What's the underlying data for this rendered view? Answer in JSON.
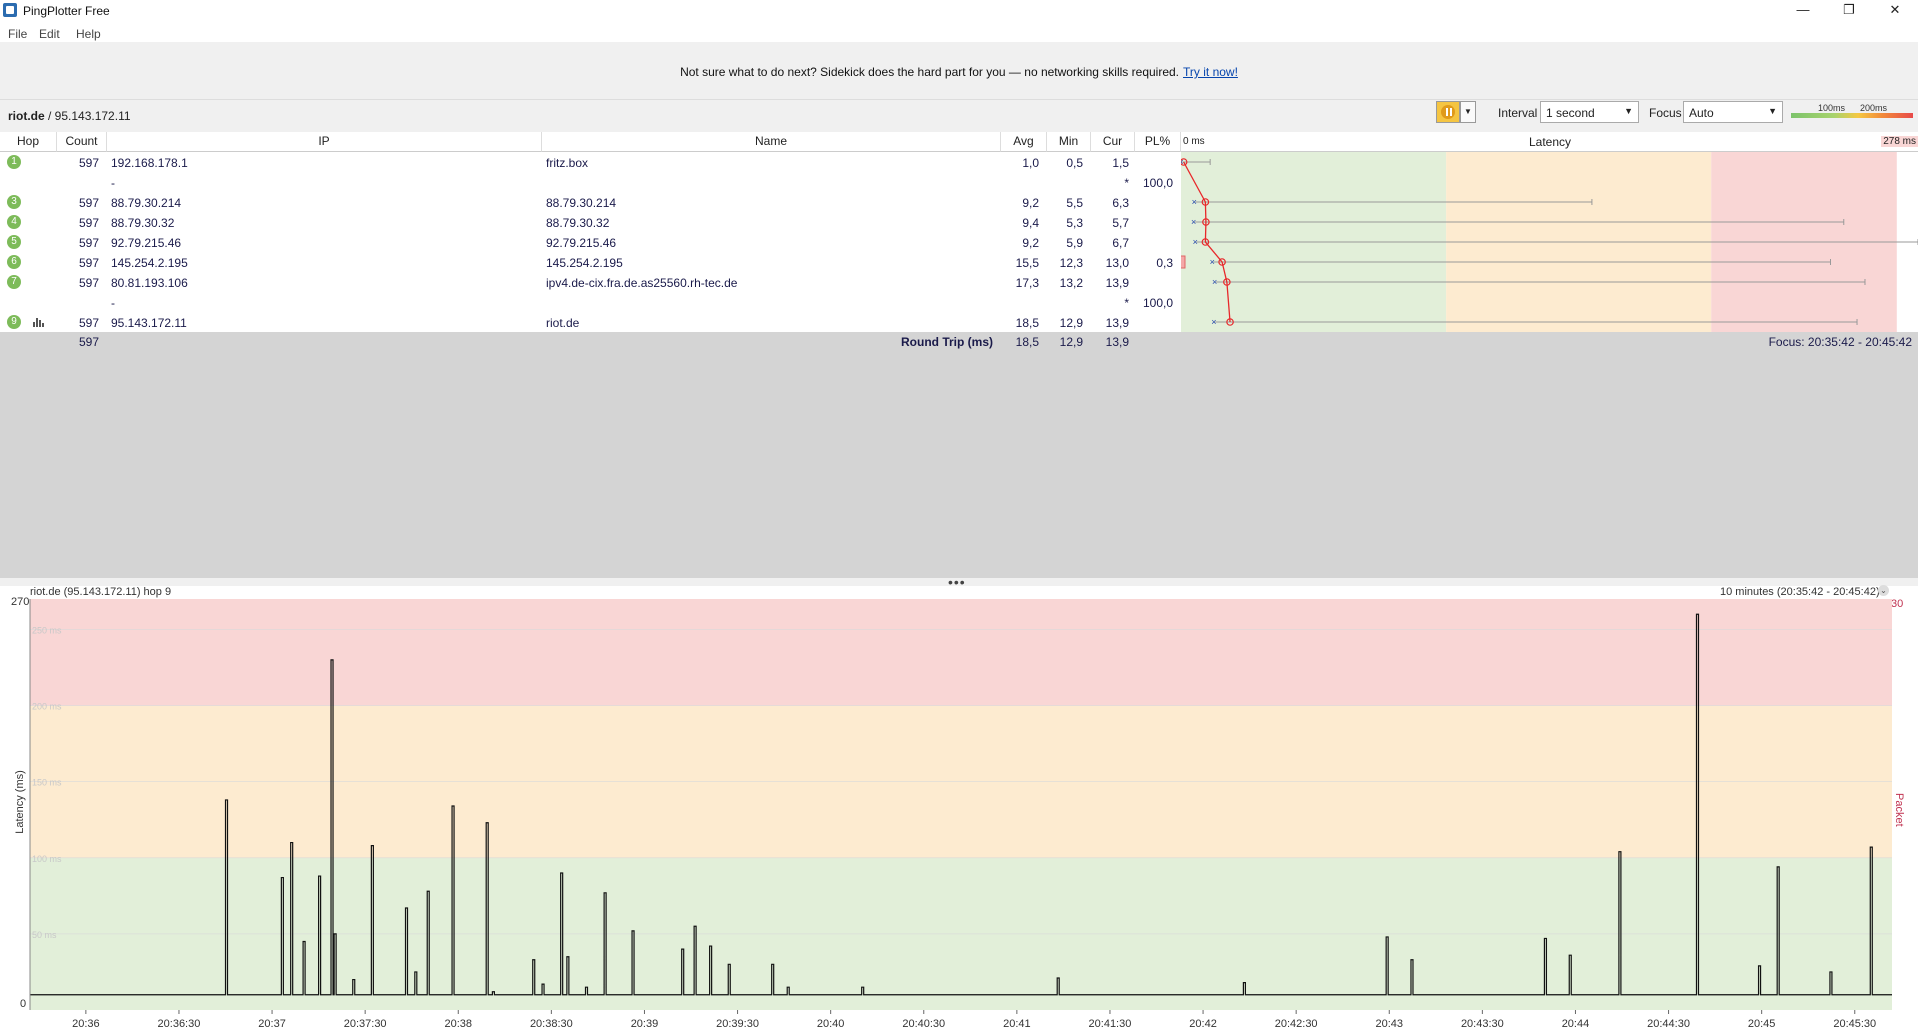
{
  "window": {
    "title": "PingPlotter Free",
    "minimize": "—",
    "restore": "❐",
    "close": "✕"
  },
  "menu": [
    "File",
    "Edit",
    "Help"
  ],
  "banner": {
    "text": "Not sure what to do next? Sidekick does the hard part for you — no networking skills required.",
    "link": "Try it now!"
  },
  "target": {
    "host": "riot.de",
    "ip": " / 95.143.172.11"
  },
  "controls": {
    "interval_label": "Interval",
    "interval_value": "1 second",
    "focus_label": "Focus",
    "focus_value": "Auto",
    "scale_100": "100ms",
    "scale_200": "200ms"
  },
  "table": {
    "headers": {
      "hop": "Hop",
      "count": "Count",
      "ip": "IP",
      "name": "Name",
      "avg": "Avg",
      "min": "Min",
      "cur": "Cur",
      "pl": "PL%",
      "latency": "Latency",
      "lat_min": "0 ms",
      "lat_max": "278 ms"
    },
    "rows": [
      {
        "hop": "1",
        "count": "597",
        "ip": "192.168.178.1",
        "name": "fritz.box",
        "avg": "1,0",
        "min": "0,5",
        "cur": "1,5",
        "pl": "",
        "lat": 1.0,
        "lat_min": 0.5,
        "lat_max": 11
      },
      {
        "hop": "",
        "count": "",
        "ip": "-",
        "name": "",
        "avg": "",
        "min": "",
        "cur": "*",
        "pl": "100,0",
        "lat": null
      },
      {
        "hop": "3",
        "count": "597",
        "ip": "88.79.30.214",
        "name": "88.79.30.214",
        "avg": "9,2",
        "min": "5,5",
        "cur": "6,3",
        "pl": "",
        "lat": 9.2,
        "lat_min": 5.5,
        "lat_max": 155
      },
      {
        "hop": "4",
        "count": "597",
        "ip": "88.79.30.32",
        "name": "88.79.30.32",
        "avg": "9,4",
        "min": "5,3",
        "cur": "5,7",
        "pl": "",
        "lat": 9.4,
        "lat_min": 5.3,
        "lat_max": 250
      },
      {
        "hop": "5",
        "count": "597",
        "ip": "92.79.215.46",
        "name": "92.79.215.46",
        "avg": "9,2",
        "min": "5,9",
        "cur": "6,7",
        "pl": "",
        "lat": 9.2,
        "lat_min": 5.9,
        "lat_max": 278
      },
      {
        "hop": "6",
        "count": "597",
        "ip": "145.254.2.195",
        "name": "145.254.2.195",
        "avg": "15,5",
        "min": "12,3",
        "cur": "13,0",
        "pl": "0,3",
        "lat": 15.5,
        "lat_min": 12.3,
        "lat_max": 245,
        "pl_frac": 0.003
      },
      {
        "hop": "7",
        "count": "597",
        "ip": "80.81.193.106",
        "name": "ipv4.de-cix.fra.de.as25560.rh-tec.de",
        "avg": "17,3",
        "min": "13,2",
        "cur": "13,9",
        "pl": "",
        "lat": 17.3,
        "lat_min": 13.2,
        "lat_max": 258
      },
      {
        "hop": "",
        "count": "",
        "ip": "-",
        "name": "",
        "avg": "",
        "min": "",
        "cur": "*",
        "pl": "100,0",
        "lat": null
      },
      {
        "hop": "9",
        "count": "597",
        "ip": "95.143.172.11",
        "name": "riot.de",
        "avg": "18,5",
        "min": "12,9",
        "cur": "13,9",
        "pl": "",
        "lat": 18.5,
        "lat_min": 12.9,
        "lat_max": 255,
        "graph_icon": true
      }
    ],
    "summary": {
      "count": "597",
      "label": "Round Trip (ms)",
      "avg": "18,5",
      "min": "12,9",
      "cur": "13,9",
      "focus": "Focus: 20:35:42 - 20:45:42"
    }
  },
  "colors": {
    "good": "#e2efd9",
    "warn": "#fdebd0",
    "bad": "#f9d6d5",
    "line": "#e8272a",
    "badge": "#7dbb5a"
  },
  "chart_data": {
    "type": "line",
    "title": "riot.de (95.143.172.11) hop 9",
    "range_label": "10 minutes (20:35:42 - 20:45:42)",
    "ylabel": "Latency (ms)",
    "y2label": "Packet Loss %",
    "ylim": [
      0,
      270
    ],
    "y_top_label": "270",
    "y_bottom_label": "0",
    "y2_top_label": "30",
    "zone_labels": [
      "250 ms",
      "200 ms",
      "150 ms",
      "100 ms",
      "50 ms"
    ],
    "zones": [
      {
        "from": 0,
        "to": 100,
        "color": "#e2efd9"
      },
      {
        "from": 100,
        "to": 200,
        "color": "#fdebd0"
      },
      {
        "from": 200,
        "to": 270,
        "color": "#f9d6d5"
      }
    ],
    "x_ticks": [
      "20:36",
      "20:36:30",
      "20:37",
      "20:37:30",
      "20:38",
      "20:38:30",
      "20:39",
      "20:39:30",
      "20:40",
      "20:40:30",
      "20:41",
      "20:41:30",
      "20:42",
      "20:42:30",
      "20:43",
      "20:43:30",
      "20:44",
      "20:44:30",
      "20:45",
      "20:45:30"
    ],
    "baseline_ms": 10,
    "spikes": [
      {
        "t": 63,
        "v": 138
      },
      {
        "t": 81,
        "v": 87
      },
      {
        "t": 84,
        "v": 110
      },
      {
        "t": 88,
        "v": 45
      },
      {
        "t": 93,
        "v": 88
      },
      {
        "t": 97,
        "v": 230
      },
      {
        "t": 98,
        "v": 50
      },
      {
        "t": 104,
        "v": 20
      },
      {
        "t": 110,
        "v": 108
      },
      {
        "t": 121,
        "v": 67
      },
      {
        "t": 124,
        "v": 25
      },
      {
        "t": 128,
        "v": 78
      },
      {
        "t": 136,
        "v": 134
      },
      {
        "t": 147,
        "v": 123
      },
      {
        "t": 149,
        "v": 12
      },
      {
        "t": 162,
        "v": 33
      },
      {
        "t": 165,
        "v": 17
      },
      {
        "t": 171,
        "v": 90
      },
      {
        "t": 173,
        "v": 35
      },
      {
        "t": 179,
        "v": 15
      },
      {
        "t": 185,
        "v": 77
      },
      {
        "t": 194,
        "v": 52
      },
      {
        "t": 210,
        "v": 40
      },
      {
        "t": 214,
        "v": 55
      },
      {
        "t": 219,
        "v": 42
      },
      {
        "t": 225,
        "v": 30
      },
      {
        "t": 232,
        "v": 10
      },
      {
        "t": 239,
        "v": 30
      },
      {
        "t": 244,
        "v": 15
      },
      {
        "t": 268,
        "v": 15
      },
      {
        "t": 273,
        "v": 10
      },
      {
        "t": 331,
        "v": 21
      },
      {
        "t": 391,
        "v": 18
      },
      {
        "t": 437,
        "v": 48
      },
      {
        "t": 445,
        "v": 33
      },
      {
        "t": 488,
        "v": 47
      },
      {
        "t": 496,
        "v": 36
      },
      {
        "t": 512,
        "v": 104
      },
      {
        "t": 537,
        "v": 260
      },
      {
        "t": 557,
        "v": 29
      },
      {
        "t": 563,
        "v": 94
      },
      {
        "t": 580,
        "v": 25
      },
      {
        "t": 593,
        "v": 107
      }
    ],
    "x_range_s": [
      0,
      600
    ]
  }
}
